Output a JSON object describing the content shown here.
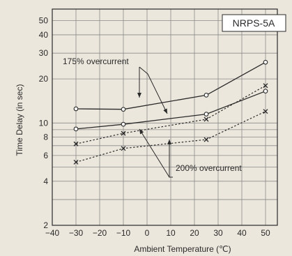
{
  "chart_data": {
    "type": "line",
    "title": "NRPS-5A",
    "xlabel": "Ambient Temperature (℃)",
    "ylabel": "Time Delay (in sec)",
    "xlim": [
      -40,
      55
    ],
    "ylim": [
      2,
      60
    ],
    "y_scale": "log",
    "grid": true,
    "x_ticks": [
      -40,
      -30,
      -20,
      -10,
      0,
      10,
      20,
      30,
      40,
      50
    ],
    "x_tick_labels": [
      "−40",
      "−30",
      "−20",
      "−10",
      "0",
      "10",
      "20",
      "30",
      "40",
      "50"
    ],
    "y_ticks": [
      2,
      4,
      6,
      8,
      10,
      20,
      30,
      40,
      50
    ],
    "y_tick_labels": [
      "2",
      "4",
      "6",
      "8",
      "10",
      "20",
      "30",
      "40",
      "50"
    ],
    "series": [
      {
        "style": "solid",
        "marker": "circle",
        "x": [
          -30,
          -10,
          25,
          50
        ],
        "y": [
          12.5,
          12.4,
          15.5,
          26
        ]
      },
      {
        "style": "solid",
        "marker": "circle",
        "x": [
          -30,
          -10,
          25,
          50
        ],
        "y": [
          9.1,
          9.8,
          11.5,
          16.5
        ]
      },
      {
        "style": "dotted",
        "marker": "x",
        "x": [
          -30,
          -10,
          25,
          50
        ],
        "y": [
          7.2,
          8.5,
          10.6,
          18
        ]
      },
      {
        "style": "dotted",
        "marker": "x",
        "x": [
          -30,
          -10,
          25,
          50
        ],
        "y": [
          5.4,
          6.7,
          7.7,
          12
        ]
      }
    ],
    "annotations": [
      {
        "text": "175% overcurrent"
      },
      {
        "text": "200% overcurrent"
      }
    ],
    "line_color": "#2a2a2a"
  }
}
